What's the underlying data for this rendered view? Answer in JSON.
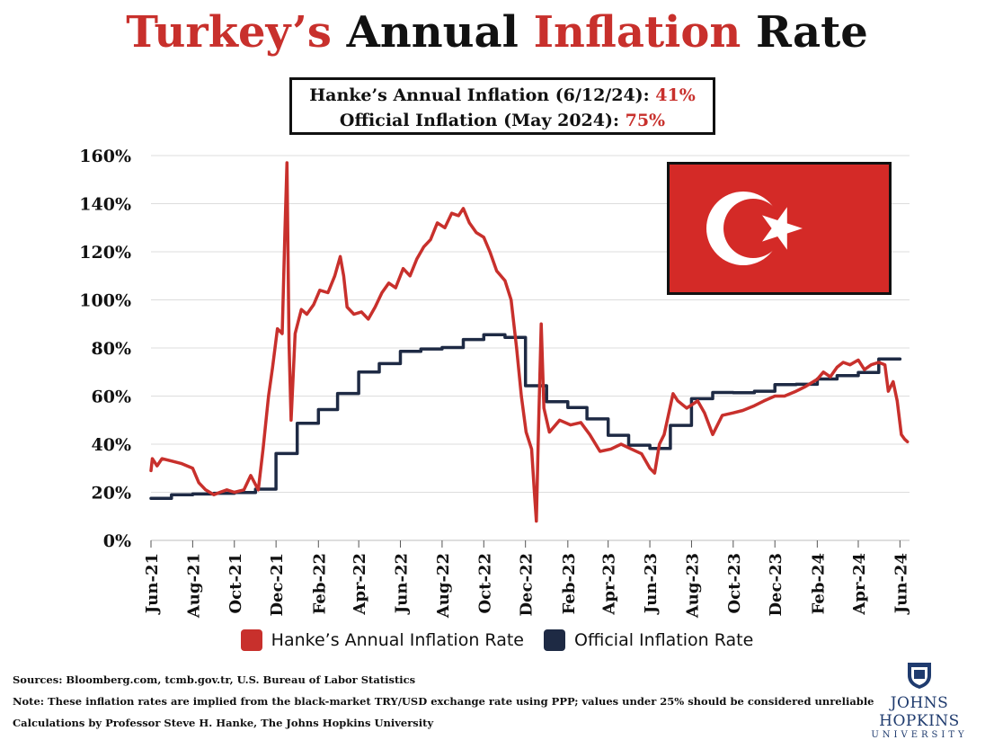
{
  "title": {
    "part1": "Turkey’s",
    "part2": "Annual",
    "part3": "Inflation",
    "part4": "Rate"
  },
  "infobox": {
    "line1_label": "Hanke’s Annual Inflation (6/12/24):",
    "line1_value": "41%",
    "line2_label": "Official Inflation (May 2024):",
    "line2_value": "75%"
  },
  "colors": {
    "hanke": "#c8302c",
    "official": "#1e2a44",
    "flag_red": "#d42a27"
  },
  "flag_icon": "turkey-flag-icon",
  "footer": {
    "sources": "Sources: Bloomberg.com, tcmb.gov.tr, U.S. Bureau of Labor Statistics",
    "note": "Note: These inflation rates are implied from the black-market TRY/USD exchange rate using PPP; values under 25% should be considered unreliable",
    "calc": "Calculations by Professor Steve H. Hanke, The Johns Hopkins University"
  },
  "logo": {
    "name": "JOHNS HOPKINS",
    "sub": "UNIVERSITY",
    "icon": "jhu-shield-icon"
  },
  "chart_data": {
    "type": "line",
    "title": "Turkey’s Annual Inflation Rate",
    "xlabel": "",
    "ylabel": "",
    "ylim": [
      0,
      160
    ],
    "yticks": [
      "0%",
      "20%",
      "40%",
      "60%",
      "80%",
      "100%",
      "120%",
      "140%",
      "160%"
    ],
    "xticks": [
      "Jun-21",
      "Aug-21",
      "Oct-21",
      "Dec-21",
      "Feb-22",
      "Apr-22",
      "Jun-22",
      "Aug-22",
      "Oct-22",
      "Dec-22",
      "Feb-23",
      "Apr-23",
      "Jun-23",
      "Aug-23",
      "Oct-23",
      "Dec-23",
      "Feb-24",
      "Apr-24",
      "Jun-24"
    ],
    "grid": true,
    "legend_position": "bottom",
    "series": [
      {
        "name": "Hanke’s Annual Inflation Rate",
        "style": "line",
        "points": [
          [
            "2021-06-01",
            29
          ],
          [
            "2021-06-03",
            34
          ],
          [
            "2021-06-10",
            31
          ],
          [
            "2021-06-17",
            34
          ],
          [
            "2021-07-01",
            33
          ],
          [
            "2021-07-15",
            32
          ],
          [
            "2021-08-01",
            30
          ],
          [
            "2021-08-10",
            24
          ],
          [
            "2021-08-20",
            21
          ],
          [
            "2021-09-01",
            19
          ],
          [
            "2021-09-10",
            20
          ],
          [
            "2021-09-20",
            21
          ],
          [
            "2021-10-01",
            20
          ],
          [
            "2021-10-15",
            21
          ],
          [
            "2021-10-25",
            27
          ],
          [
            "2021-11-05",
            21
          ],
          [
            "2021-11-12",
            38
          ],
          [
            "2021-11-20",
            60
          ],
          [
            "2021-11-26",
            72
          ],
          [
            "2021-12-03",
            88
          ],
          [
            "2021-12-10",
            86
          ],
          [
            "2021-12-14",
            128
          ],
          [
            "2021-12-17",
            157
          ],
          [
            "2021-12-20",
            82
          ],
          [
            "2021-12-23",
            50
          ],
          [
            "2021-12-29",
            86
          ],
          [
            "2022-01-07",
            96
          ],
          [
            "2022-01-15",
            94
          ],
          [
            "2022-01-25",
            98
          ],
          [
            "2022-02-03",
            104
          ],
          [
            "2022-02-15",
            103
          ],
          [
            "2022-02-25",
            110
          ],
          [
            "2022-03-05",
            118
          ],
          [
            "2022-03-10",
            110
          ],
          [
            "2022-03-15",
            97
          ],
          [
            "2022-03-25",
            94
          ],
          [
            "2022-04-05",
            95
          ],
          [
            "2022-04-15",
            92
          ],
          [
            "2022-04-25",
            97
          ],
          [
            "2022-05-05",
            103
          ],
          [
            "2022-05-15",
            107
          ],
          [
            "2022-05-25",
            105
          ],
          [
            "2022-06-05",
            113
          ],
          [
            "2022-06-15",
            110
          ],
          [
            "2022-06-25",
            117
          ],
          [
            "2022-07-05",
            122
          ],
          [
            "2022-07-15",
            125
          ],
          [
            "2022-07-25",
            132
          ],
          [
            "2022-08-05",
            130
          ],
          [
            "2022-08-15",
            136
          ],
          [
            "2022-08-25",
            135
          ],
          [
            "2022-09-01",
            138
          ],
          [
            "2022-09-10",
            132
          ],
          [
            "2022-09-20",
            128
          ],
          [
            "2022-10-01",
            126
          ],
          [
            "2022-10-10",
            120
          ],
          [
            "2022-10-20",
            112
          ],
          [
            "2022-11-01",
            108
          ],
          [
            "2022-11-10",
            100
          ],
          [
            "2022-11-18",
            80
          ],
          [
            "2022-11-25",
            60
          ],
          [
            "2022-12-02",
            45
          ],
          [
            "2022-12-10",
            38
          ],
          [
            "2022-12-14",
            20
          ],
          [
            "2022-12-17",
            8
          ],
          [
            "2022-12-20",
            45
          ],
          [
            "2022-12-24",
            90
          ],
          [
            "2022-12-28",
            55
          ],
          [
            "2023-01-05",
            45
          ],
          [
            "2023-01-20",
            50
          ],
          [
            "2023-02-05",
            48
          ],
          [
            "2023-02-20",
            49
          ],
          [
            "2023-03-05",
            44
          ],
          [
            "2023-03-20",
            37
          ],
          [
            "2023-04-05",
            38
          ],
          [
            "2023-04-20",
            40
          ],
          [
            "2023-05-05",
            38
          ],
          [
            "2023-05-20",
            36
          ],
          [
            "2023-06-01",
            30
          ],
          [
            "2023-06-08",
            28
          ],
          [
            "2023-06-15",
            40
          ],
          [
            "2023-06-22",
            44
          ],
          [
            "2023-07-05",
            61
          ],
          [
            "2023-07-12",
            58
          ],
          [
            "2023-07-25",
            55
          ],
          [
            "2023-08-10",
            58
          ],
          [
            "2023-08-20",
            53
          ],
          [
            "2023-09-01",
            44
          ],
          [
            "2023-09-15",
            52
          ],
          [
            "2023-10-01",
            53
          ],
          [
            "2023-10-15",
            54
          ],
          [
            "2023-11-01",
            56
          ],
          [
            "2023-11-15",
            58
          ],
          [
            "2023-12-01",
            60
          ],
          [
            "2023-12-15",
            60
          ],
          [
            "2024-01-01",
            62
          ],
          [
            "2024-01-15",
            64
          ],
          [
            "2024-02-01",
            67
          ],
          [
            "2024-02-10",
            70
          ],
          [
            "2024-02-20",
            68
          ],
          [
            "2024-03-01",
            72
          ],
          [
            "2024-03-10",
            74
          ],
          [
            "2024-03-20",
            73
          ],
          [
            "2024-04-01",
            75
          ],
          [
            "2024-04-10",
            71
          ],
          [
            "2024-04-20",
            73
          ],
          [
            "2024-05-01",
            74
          ],
          [
            "2024-05-10",
            73
          ],
          [
            "2024-05-15",
            62
          ],
          [
            "2024-05-22",
            66
          ],
          [
            "2024-05-28",
            58
          ],
          [
            "2024-06-03",
            44
          ],
          [
            "2024-06-08",
            42
          ],
          [
            "2024-06-12",
            41
          ]
        ]
      },
      {
        "name": "Official Inflation Rate",
        "style": "step",
        "points": [
          [
            "2021-06-01",
            17.5
          ],
          [
            "2021-07-01",
            19.0
          ],
          [
            "2021-08-01",
            19.3
          ],
          [
            "2021-09-01",
            19.6
          ],
          [
            "2021-10-01",
            19.9
          ],
          [
            "2021-11-01",
            21.3
          ],
          [
            "2021-12-01",
            36.1
          ],
          [
            "2022-01-01",
            48.7
          ],
          [
            "2022-02-01",
            54.4
          ],
          [
            "2022-03-01",
            61.1
          ],
          [
            "2022-04-01",
            70.0
          ],
          [
            "2022-05-01",
            73.5
          ],
          [
            "2022-06-01",
            78.6
          ],
          [
            "2022-07-01",
            79.6
          ],
          [
            "2022-08-01",
            80.2
          ],
          [
            "2022-09-01",
            83.5
          ],
          [
            "2022-10-01",
            85.5
          ],
          [
            "2022-11-01",
            84.4
          ],
          [
            "2022-12-01",
            64.3
          ],
          [
            "2023-01-01",
            57.7
          ],
          [
            "2023-02-01",
            55.2
          ],
          [
            "2023-03-01",
            50.5
          ],
          [
            "2023-04-01",
            43.7
          ],
          [
            "2023-05-01",
            39.6
          ],
          [
            "2023-06-01",
            38.2
          ],
          [
            "2023-07-01",
            47.8
          ],
          [
            "2023-08-01",
            58.9
          ],
          [
            "2023-09-01",
            61.5
          ],
          [
            "2023-10-01",
            61.4
          ],
          [
            "2023-11-01",
            62.0
          ],
          [
            "2023-12-01",
            64.8
          ],
          [
            "2024-01-01",
            64.9
          ],
          [
            "2024-02-01",
            67.1
          ],
          [
            "2024-03-01",
            68.5
          ],
          [
            "2024-04-01",
            69.8
          ],
          [
            "2024-05-01",
            75.4
          ],
          [
            "2024-06-01",
            75.4
          ]
        ]
      }
    ]
  }
}
